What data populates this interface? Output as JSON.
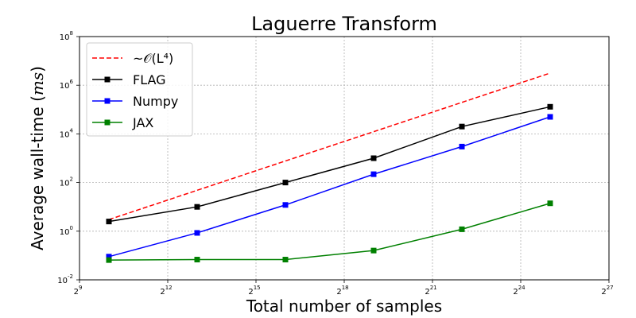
{
  "chart_data": {
    "type": "line",
    "title": "Laguerre Transform",
    "xlabel": "Total number of samples",
    "ylabel": "Average wall-time (ms)",
    "xscale": "log2",
    "yscale": "log10",
    "xlim_exp2": [
      9,
      27
    ],
    "ylim_exp10": [
      -2,
      8
    ],
    "xticks_exp2": [
      9,
      12,
      15,
      18,
      21,
      24,
      27
    ],
    "yticks_exp10": [
      -2,
      0,
      2,
      4,
      6,
      8
    ],
    "grid": true,
    "legend_position": "top-left",
    "x_exp2": [
      10,
      13,
      16,
      19,
      22,
      25
    ],
    "series": [
      {
        "name": "~O(L^4)",
        "legend_label": "~𝒪(L⁴)",
        "color": "#ff0000",
        "style": "dashed",
        "marker": "none",
        "values": [
          3,
          48,
          770,
          12300,
          197000,
          3150000
        ]
      },
      {
        "name": "FLAG",
        "legend_label": "FLAG",
        "color": "#000000",
        "style": "solid",
        "marker": "square",
        "values": [
          2.5,
          10,
          100,
          1000,
          20000,
          130000
        ]
      },
      {
        "name": "Numpy",
        "legend_label": "Numpy",
        "color": "#0000ff",
        "style": "solid",
        "marker": "square",
        "values": [
          0.09,
          0.85,
          12,
          220,
          3000,
          50000
        ]
      },
      {
        "name": "JAX",
        "legend_label": "JAX",
        "color": "#008000",
        "style": "solid",
        "marker": "square",
        "values": [
          0.065,
          0.068,
          0.068,
          0.16,
          1.2,
          14
        ]
      }
    ]
  }
}
